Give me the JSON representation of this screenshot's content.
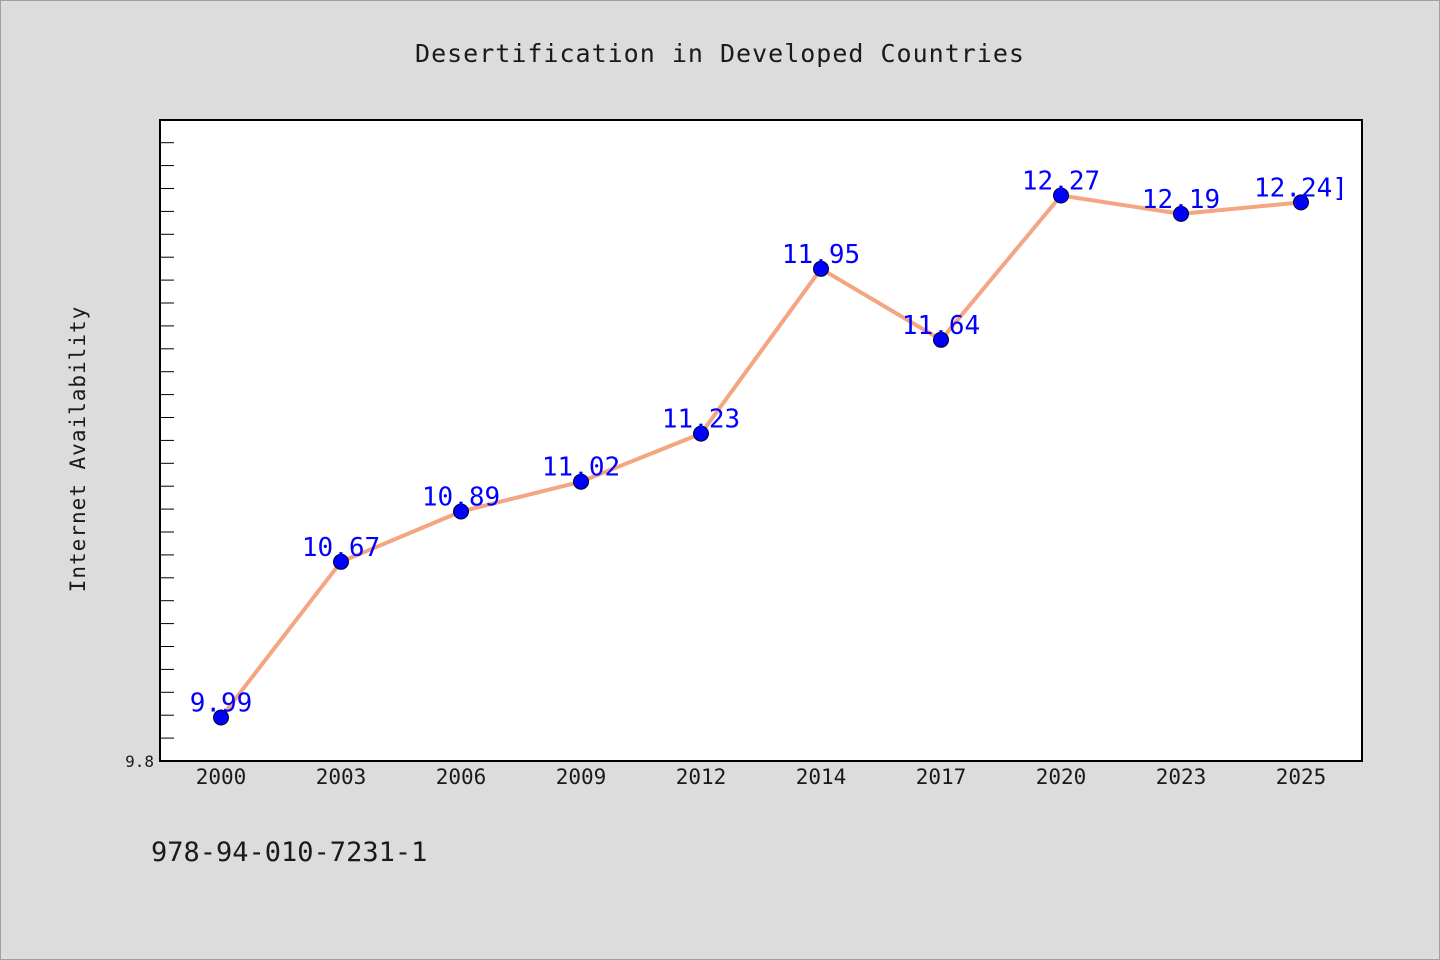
{
  "chart_data": {
    "type": "line",
    "title": "Desertification in Developed Countries",
    "xlabel": "",
    "ylabel": "Internet Availability",
    "categories": [
      "2000",
      "2003",
      "2006",
      "2009",
      "2012",
      "2014",
      "2017",
      "2020",
      "2023",
      "2025"
    ],
    "series": [
      {
        "values": [
          9.99,
          10.67,
          10.89,
          11.02,
          11.23,
          11.95,
          11.64,
          12.27,
          12.19,
          12.24
        ]
      }
    ],
    "data_labels": [
      "9.99",
      "10.67",
      "10.89",
      "11.02",
      "11.23",
      "11.95",
      "11.64",
      "12.27",
      "12.19",
      "12.24]"
    ],
    "y_tick_labels": [
      "9.8"
    ],
    "ylim": [
      9.8,
      12.6
    ],
    "grid": false,
    "legend": "none",
    "colors": {
      "line": "#f4a582",
      "marker": "#0000ff",
      "data_label": "#0000ff",
      "plot_background": "#ffffff",
      "figure_background": "#dcdcdc"
    }
  },
  "footer": {
    "code": "978-94-010-7231-1"
  }
}
